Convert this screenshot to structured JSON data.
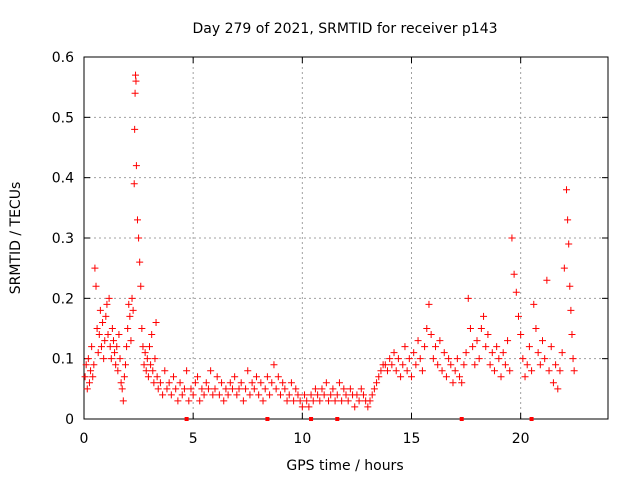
{
  "chart_data": {
    "type": "scatter",
    "title": "Day 279 of 2021, SRMTID for receiver p143",
    "xlabel": "GPS time / hours",
    "ylabel": "SRMTID / TECUs",
    "xlim": [
      0,
      24
    ],
    "ylim": [
      0,
      0.6
    ],
    "xticks": [
      0,
      5,
      10,
      15,
      20
    ],
    "xtick_labels": [
      "0",
      "5",
      "10",
      "15",
      "20"
    ],
    "yticks": [
      0,
      0.1,
      0.2,
      0.3,
      0.4,
      0.5,
      0.6
    ],
    "ytick_labels": [
      "0",
      "0.1",
      "0.2",
      "0.3",
      "0.4",
      "0.5",
      "0.6"
    ],
    "grid": true,
    "marker": "+",
    "colors": {
      "series": "#ff0000",
      "grid": "#a0a0a0",
      "axis": "#000000"
    },
    "series": [
      {
        "name": "SRMTID",
        "points": [
          [
            0.05,
            0.07
          ],
          [
            0.1,
            0.09
          ],
          [
            0.15,
            0.05
          ],
          [
            0.2,
            0.1
          ],
          [
            0.25,
            0.06
          ],
          [
            0.3,
            0.08
          ],
          [
            0.35,
            0.12
          ],
          [
            0.4,
            0.07
          ],
          [
            0.45,
            0.09
          ],
          [
            0.5,
            0.25
          ],
          [
            0.55,
            0.22
          ],
          [
            0.6,
            0.15
          ],
          [
            0.65,
            0.11
          ],
          [
            0.7,
            0.14
          ],
          [
            0.75,
            0.18
          ],
          [
            0.8,
            0.12
          ],
          [
            0.85,
            0.16
          ],
          [
            0.9,
            0.1
          ],
          [
            0.95,
            0.13
          ],
          [
            1.0,
            0.17
          ],
          [
            1.05,
            0.19
          ],
          [
            1.1,
            0.14
          ],
          [
            1.15,
            0.2
          ],
          [
            1.2,
            0.12
          ],
          [
            1.25,
            0.1
          ],
          [
            1.3,
            0.15
          ],
          [
            1.35,
            0.13
          ],
          [
            1.4,
            0.11
          ],
          [
            1.45,
            0.09
          ],
          [
            1.5,
            0.12
          ],
          [
            1.55,
            0.08
          ],
          [
            1.6,
            0.14
          ],
          [
            1.65,
            0.1
          ],
          [
            1.7,
            0.06
          ],
          [
            1.75,
            0.05
          ],
          [
            1.8,
            0.03
          ],
          [
            1.85,
            0.07
          ],
          [
            1.9,
            0.09
          ],
          [
            1.95,
            0.12
          ],
          [
            2.0,
            0.15
          ],
          [
            2.05,
            0.19
          ],
          [
            2.1,
            0.17
          ],
          [
            2.15,
            0.13
          ],
          [
            2.2,
            0.2
          ],
          [
            2.25,
            0.18
          ],
          [
            2.3,
            0.39
          ],
          [
            2.32,
            0.48
          ],
          [
            2.34,
            0.54
          ],
          [
            2.36,
            0.57
          ],
          [
            2.38,
            0.56
          ],
          [
            2.4,
            0.42
          ],
          [
            2.45,
            0.33
          ],
          [
            2.5,
            0.3
          ],
          [
            2.55,
            0.26
          ],
          [
            2.6,
            0.22
          ],
          [
            2.65,
            0.15
          ],
          [
            2.7,
            0.12
          ],
          [
            2.75,
            0.09
          ],
          [
            2.8,
            0.11
          ],
          [
            2.85,
            0.08
          ],
          [
            2.9,
            0.1
          ],
          [
            2.95,
            0.07
          ],
          [
            3.0,
            0.12
          ],
          [
            3.05,
            0.09
          ],
          [
            3.1,
            0.14
          ],
          [
            3.15,
            0.08
          ],
          [
            3.2,
            0.06
          ],
          [
            3.25,
            0.1
          ],
          [
            3.3,
            0.16
          ],
          [
            3.35,
            0.07
          ],
          [
            3.4,
            0.05
          ],
          [
            3.5,
            0.06
          ],
          [
            3.6,
            0.04
          ],
          [
            3.7,
            0.08
          ],
          [
            3.8,
            0.05
          ],
          [
            3.9,
            0.06
          ],
          [
            4.0,
            0.04
          ],
          [
            4.1,
            0.07
          ],
          [
            4.2,
            0.05
          ],
          [
            4.3,
            0.03
          ],
          [
            4.4,
            0.06
          ],
          [
            4.5,
            0.04
          ],
          [
            4.6,
            0.05
          ],
          [
            4.7,
            0.08
          ],
          [
            4.8,
            0.03
          ],
          [
            4.9,
            0.05
          ],
          [
            5.0,
            0.04
          ],
          [
            5.1,
            0.06
          ],
          [
            5.2,
            0.07
          ],
          [
            5.3,
            0.03
          ],
          [
            5.4,
            0.05
          ],
          [
            5.5,
            0.04
          ],
          [
            5.6,
            0.06
          ],
          [
            5.7,
            0.05
          ],
          [
            5.8,
            0.08
          ],
          [
            5.9,
            0.04
          ],
          [
            6.0,
            0.05
          ],
          [
            6.1,
            0.07
          ],
          [
            6.2,
            0.04
          ],
          [
            6.3,
            0.06
          ],
          [
            6.4,
            0.03
          ],
          [
            6.5,
            0.05
          ],
          [
            6.6,
            0.04
          ],
          [
            6.7,
            0.06
          ],
          [
            6.8,
            0.05
          ],
          [
            6.9,
            0.07
          ],
          [
            7.0,
            0.04
          ],
          [
            7.1,
            0.05
          ],
          [
            7.2,
            0.06
          ],
          [
            7.3,
            0.03
          ],
          [
            7.4,
            0.05
          ],
          [
            7.5,
            0.08
          ],
          [
            7.6,
            0.04
          ],
          [
            7.7,
            0.06
          ],
          [
            7.8,
            0.05
          ],
          [
            7.9,
            0.07
          ],
          [
            8.0,
            0.04
          ],
          [
            8.1,
            0.06
          ],
          [
            8.2,
            0.03
          ],
          [
            8.3,
            0.05
          ],
          [
            8.4,
            0.07
          ],
          [
            8.5,
            0.04
          ],
          [
            8.6,
            0.06
          ],
          [
            8.7,
            0.09
          ],
          [
            8.8,
            0.05
          ],
          [
            8.9,
            0.07
          ],
          [
            9.0,
            0.04
          ],
          [
            9.1,
            0.06
          ],
          [
            9.2,
            0.05
          ],
          [
            9.3,
            0.03
          ],
          [
            9.4,
            0.04
          ],
          [
            9.5,
            0.06
          ],
          [
            9.6,
            0.03
          ],
          [
            9.7,
            0.05
          ],
          [
            9.8,
            0.04
          ],
          [
            9.9,
            0.03
          ],
          [
            10.0,
            0.02
          ],
          [
            10.1,
            0.04
          ],
          [
            10.2,
            0.03
          ],
          [
            10.3,
            0.02
          ],
          [
            10.4,
            0.04
          ],
          [
            10.5,
            0.03
          ],
          [
            10.6,
            0.05
          ],
          [
            10.7,
            0.04
          ],
          [
            10.8,
            0.03
          ],
          [
            10.9,
            0.05
          ],
          [
            11.0,
            0.04
          ],
          [
            11.1,
            0.06
          ],
          [
            11.2,
            0.03
          ],
          [
            11.3,
            0.04
          ],
          [
            11.4,
            0.05
          ],
          [
            11.5,
            0.03
          ],
          [
            11.6,
            0.04
          ],
          [
            11.7,
            0.06
          ],
          [
            11.8,
            0.03
          ],
          [
            11.9,
            0.05
          ],
          [
            12.0,
            0.04
          ],
          [
            12.1,
            0.03
          ],
          [
            12.2,
            0.05
          ],
          [
            12.3,
            0.04
          ],
          [
            12.4,
            0.02
          ],
          [
            12.5,
            0.04
          ],
          [
            12.6,
            0.03
          ],
          [
            12.7,
            0.05
          ],
          [
            12.8,
            0.04
          ],
          [
            12.9,
            0.03
          ],
          [
            13.0,
            0.02
          ],
          [
            13.1,
            0.03
          ],
          [
            13.2,
            0.04
          ],
          [
            13.3,
            0.05
          ],
          [
            13.4,
            0.06
          ],
          [
            13.5,
            0.07
          ],
          [
            13.6,
            0.08
          ],
          [
            13.7,
            0.09
          ],
          [
            13.8,
            0.09
          ],
          [
            13.9,
            0.08
          ],
          [
            14.0,
            0.1
          ],
          [
            14.1,
            0.09
          ],
          [
            14.2,
            0.11
          ],
          [
            14.3,
            0.08
          ],
          [
            14.4,
            0.1
          ],
          [
            14.5,
            0.07
          ],
          [
            14.6,
            0.09
          ],
          [
            14.7,
            0.12
          ],
          [
            14.8,
            0.08
          ],
          [
            14.9,
            0.1
          ],
          [
            15.0,
            0.07
          ],
          [
            15.1,
            0.11
          ],
          [
            15.2,
            0.09
          ],
          [
            15.3,
            0.13
          ],
          [
            15.4,
            0.1
          ],
          [
            15.5,
            0.08
          ],
          [
            15.6,
            0.12
          ],
          [
            15.7,
            0.15
          ],
          [
            15.8,
            0.19
          ],
          [
            15.9,
            0.14
          ],
          [
            16.0,
            0.1
          ],
          [
            16.1,
            0.12
          ],
          [
            16.2,
            0.09
          ],
          [
            16.3,
            0.13
          ],
          [
            16.4,
            0.08
          ],
          [
            16.5,
            0.11
          ],
          [
            16.6,
            0.07
          ],
          [
            16.7,
            0.1
          ],
          [
            16.8,
            0.09
          ],
          [
            16.9,
            0.06
          ],
          [
            17.0,
            0.08
          ],
          [
            17.1,
            0.1
          ],
          [
            17.2,
            0.07
          ],
          [
            17.3,
            0.06
          ],
          [
            17.4,
            0.09
          ],
          [
            17.5,
            0.11
          ],
          [
            17.6,
            0.2
          ],
          [
            17.7,
            0.15
          ],
          [
            17.8,
            0.12
          ],
          [
            17.9,
            0.09
          ],
          [
            18.0,
            0.13
          ],
          [
            18.1,
            0.1
          ],
          [
            18.2,
            0.15
          ],
          [
            18.3,
            0.17
          ],
          [
            18.4,
            0.12
          ],
          [
            18.5,
            0.14
          ],
          [
            18.6,
            0.09
          ],
          [
            18.7,
            0.11
          ],
          [
            18.8,
            0.08
          ],
          [
            18.9,
            0.12
          ],
          [
            19.0,
            0.1
          ],
          [
            19.1,
            0.07
          ],
          [
            19.2,
            0.11
          ],
          [
            19.3,
            0.09
          ],
          [
            19.4,
            0.13
          ],
          [
            19.5,
            0.08
          ],
          [
            19.6,
            0.3
          ],
          [
            19.7,
            0.24
          ],
          [
            19.8,
            0.21
          ],
          [
            19.9,
            0.17
          ],
          [
            20.0,
            0.14
          ],
          [
            20.1,
            0.1
          ],
          [
            20.2,
            0.07
          ],
          [
            20.3,
            0.09
          ],
          [
            20.4,
            0.12
          ],
          [
            20.5,
            0.08
          ],
          [
            20.6,
            0.19
          ],
          [
            20.7,
            0.15
          ],
          [
            20.8,
            0.11
          ],
          [
            20.9,
            0.09
          ],
          [
            21.0,
            0.13
          ],
          [
            21.1,
            0.1
          ],
          [
            21.2,
            0.23
          ],
          [
            21.3,
            0.08
          ],
          [
            21.4,
            0.12
          ],
          [
            21.5,
            0.06
          ],
          [
            21.6,
            0.09
          ],
          [
            21.7,
            0.05
          ],
          [
            21.8,
            0.08
          ],
          [
            21.9,
            0.11
          ],
          [
            22.0,
            0.25
          ],
          [
            22.1,
            0.38
          ],
          [
            22.15,
            0.33
          ],
          [
            22.2,
            0.29
          ],
          [
            22.25,
            0.22
          ],
          [
            22.3,
            0.18
          ],
          [
            22.35,
            0.14
          ],
          [
            22.4,
            0.1
          ],
          [
            22.45,
            0.08
          ]
        ]
      }
    ],
    "gap_markers_x": [
      4.7,
      8.4,
      10.4,
      11.6,
      17.3,
      20.5
    ]
  }
}
